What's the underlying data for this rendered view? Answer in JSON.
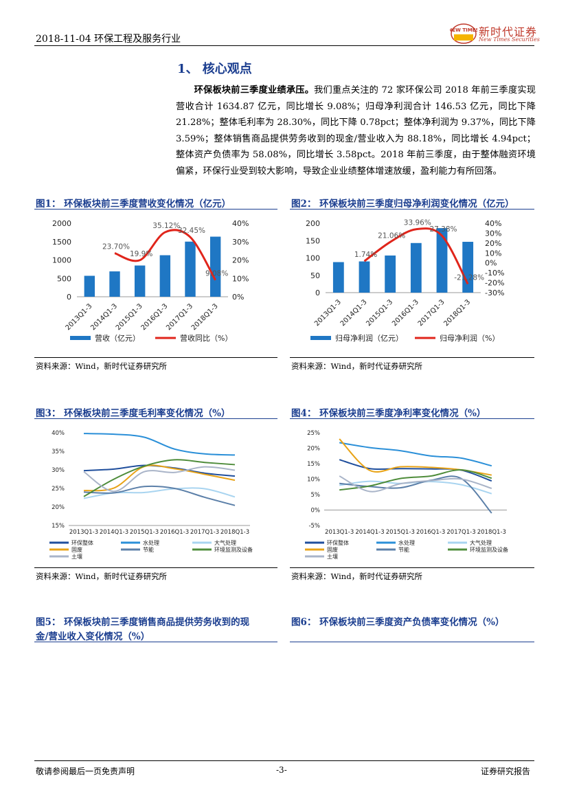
{
  "header": {
    "date_line": "2018-11-04  环保工程及服务行业",
    "logo_text": "新时代证券",
    "logo_en": "New Times Securities",
    "logo_mark": "NEW TIMES"
  },
  "section": {
    "title": "1、  核心观点",
    "lead": "环保板块前三季度业绩承压。",
    "body": "我们重点关注的 72 家环保公司 2018 年前三季度实现营收合计 1634.87 亿元，同比增长 9.08%；归母净利润合计 146.53 亿元，同比下降 21.28%；整体毛利率为 28.30%，同比下降 0.78pct；整体净利润为 9.37%，同比下降 3.59%；整体销售商品提供劳务收到的现金/营业收入为 88.18%，同比增长 4.94pct；整体资产负债率为 58.08%，同比增长 3.58pct。2018 年前三季度，由于整体融资环境偏紧，环保行业受到较大影响，导致企业业绩整体增速放缓，盈利能力有所回落。"
  },
  "figures": {
    "fig1_title": "图1：  环保板块前三季度营收变化情况（亿元）",
    "fig2_title": "图2：  环保板块前三季度归母净利润变化情况（亿元）",
    "fig3_title": "图3：  环保板块前三季度毛利率变化情况（%）",
    "fig4_title": "图4：  环保板块前三季度净利率变化情况（%）",
    "fig5_title_l1": "图5：  环保板块前三季度销售商品提供劳务收到的现",
    "fig5_title_l2": "金/营业收入变化情况（%）",
    "fig6_title": "图6：  环保板块前三季度资产负债率变化情况（%）",
    "source": "资料来源：Wind，新时代证券研究所"
  },
  "footer": {
    "left": "敬请参阅最后一页免责声明",
    "center": "-3-",
    "right": "证券研究报告"
  },
  "colors": {
    "bar": "#1f77c4",
    "line": "#e0251b",
    "title": "#1a3d8f"
  },
  "chart_data": [
    {
      "id": "fig1",
      "type": "bar",
      "categories": [
        "2013Q1-3",
        "2014Q1-3",
        "2015Q1-3",
        "2016Q1-3",
        "2017Q1-3",
        "2018Q1-3"
      ],
      "series": [
        {
          "name": "营收（亿元）",
          "axis": "left",
          "type": "bar",
          "values": [
            570,
            690,
            850,
            1130,
            1500,
            1635
          ]
        },
        {
          "name": "营收同比（%）",
          "axis": "right",
          "type": "line",
          "values": [
            null,
            23.7,
            19.9,
            35.12,
            32.45,
            9.08
          ]
        }
      ],
      "labels": [
        "",
        "23.70%",
        "19.9%",
        "35.12%",
        "32.45%",
        "9.08%"
      ],
      "left_ticks": [
        "0",
        "500",
        "1000",
        "1500",
        "2000"
      ],
      "ylim": [
        0,
        2000
      ],
      "right_ticks": [
        "0%",
        "10%",
        "20%",
        "30%",
        "40%"
      ],
      "y2lim": [
        0,
        40
      ]
    },
    {
      "id": "fig2",
      "type": "bar",
      "categories": [
        "2013Q1-3",
        "2014Q1-3",
        "2015Q1-3",
        "2016Q1-3",
        "2017Q1-3",
        "2018Q1-3"
      ],
      "series": [
        {
          "name": "归母净利润（亿元）",
          "axis": "left",
          "type": "bar",
          "values": [
            88,
            90,
            107,
            143,
            186,
            146.5
          ]
        },
        {
          "name": "归母净利润（%）",
          "axis": "right",
          "type": "line",
          "values": [
            null,
            1.74,
            21.06,
            33.96,
            27.38,
            -21.28
          ]
        }
      ],
      "labels": [
        "",
        "1.74%",
        "21.06%",
        "33.96%",
        "27.38%",
        "-21.28%"
      ],
      "left_ticks": [
        "0",
        "50",
        "100",
        "150",
        "200"
      ],
      "ylim": [
        0,
        200
      ],
      "right_ticks": [
        "-30%",
        "-20%",
        "-10%",
        "0%",
        "10%",
        "20%",
        "30%",
        "40%"
      ],
      "y2lim": [
        -30,
        40
      ]
    },
    {
      "id": "fig3",
      "type": "line",
      "categories": [
        "2013Q1-3",
        "2014Q1-3",
        "2015Q1-3",
        "2016Q1-3",
        "2017Q1-3",
        "2018Q1-3"
      ],
      "ylim": [
        15,
        40
      ],
      "ticks": [
        "15%",
        "20%",
        "25%",
        "30%",
        "35%",
        "40%"
      ],
      "series": [
        {
          "name": "环保整体",
          "color": "#1f4e9c",
          "values": [
            29.8,
            30.2,
            31.2,
            30.5,
            29.1,
            28.3
          ]
        },
        {
          "name": "水处理",
          "color": "#2a8fd8",
          "values": [
            39.8,
            39.6,
            38.8,
            35.6,
            34.3,
            34.0
          ]
        },
        {
          "name": "大气处理",
          "color": "#a8d4f0",
          "values": [
            22.3,
            23.8,
            23.9,
            24.9,
            24.9,
            22.7
          ]
        },
        {
          "name": "固废",
          "color": "#e8a317",
          "values": [
            24.4,
            25.1,
            30.9,
            30.3,
            28.8,
            27.2
          ]
        },
        {
          "name": "节能",
          "color": "#5b7fa8",
          "values": [
            24.0,
            23.8,
            25.5,
            25.0,
            22.6,
            20.4
          ]
        },
        {
          "name": "环境监测及设备",
          "color": "#4e8c3a",
          "values": [
            22.8,
            27.5,
            31.0,
            32.7,
            32.0,
            31.4
          ]
        },
        {
          "name": "土壤",
          "color": "#a9b4c8",
          "values": [
            29.5,
            24.2,
            29.5,
            29.3,
            30.8,
            29.9
          ]
        }
      ]
    },
    {
      "id": "fig4",
      "type": "line",
      "categories": [
        "2013Q1-3",
        "2014Q1-3",
        "2015Q1-3",
        "2016Q1-3",
        "2017Q1-3",
        "2018Q1-3"
      ],
      "ylim": [
        -5,
        25
      ],
      "ticks": [
        "-5%",
        "0%",
        "5%",
        "10%",
        "15%",
        "20%",
        "25%"
      ],
      "series": [
        {
          "name": "环保整体",
          "color": "#1f4e9c",
          "values": [
            16.3,
            13.4,
            13.4,
            13.3,
            12.9,
            9.4
          ]
        },
        {
          "name": "水处理",
          "color": "#2a8fd8",
          "values": [
            21.8,
            20.2,
            19.2,
            17.5,
            16.8,
            14.3
          ]
        },
        {
          "name": "大气处理",
          "color": "#a8d4f0",
          "values": [
            8.0,
            9.3,
            8.6,
            9.2,
            8.2,
            5.3
          ]
        },
        {
          "name": "固废",
          "color": "#e8a317",
          "values": [
            23.0,
            12.8,
            14.0,
            13.8,
            13.0,
            11.3
          ]
        },
        {
          "name": "节能",
          "color": "#5b7fa8",
          "values": [
            8.6,
            7.6,
            7.2,
            9.6,
            10.2,
            -1.0
          ]
        },
        {
          "name": "环境监测及设备",
          "color": "#4e8c3a",
          "values": [
            6.5,
            7.8,
            10.2,
            11.0,
            13.0,
            10.3
          ]
        },
        {
          "name": "土壤",
          "color": "#a9b4c8",
          "values": [
            11.0,
            6.0,
            8.5,
            9.5,
            10.0,
            7.0
          ]
        }
      ]
    }
  ]
}
